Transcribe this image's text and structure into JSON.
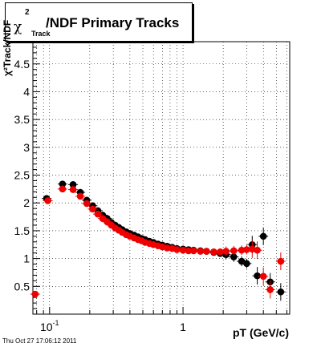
{
  "title": {
    "chi_symbol": "χ",
    "superscript": "2",
    "subscript": "Track",
    "main": "/NDF  Primary Tracks"
  },
  "ylabel": "χ²Track/NDF",
  "xlabel": "pT (GeV/c)",
  "timestamp": "Thu Oct 27 17:06:12 2011",
  "colors": {
    "series_black": "#000000",
    "series_red": "#ee0000",
    "grid": "#000000"
  },
  "chart_data": {
    "type": "scatter",
    "xscale": "log",
    "xlim": [
      0.075,
      6.3
    ],
    "ylim": [
      0,
      4.9
    ],
    "grid": true,
    "yticks": [
      0.5,
      1,
      1.5,
      2,
      2.5,
      3,
      3.5,
      4,
      4.5
    ],
    "ytick_labels": [
      "0.5",
      "1",
      "1.5",
      "2",
      "2.5",
      "3",
      "3.5",
      "4",
      "4.5"
    ],
    "xticks": [
      0.1,
      1
    ],
    "xtick_labels": [
      "10⁻¹",
      "1"
    ],
    "series": [
      {
        "color": "black",
        "points": [
          [
            0.095,
            2.08
          ],
          [
            0.125,
            2.34
          ],
          [
            0.15,
            2.33
          ],
          [
            0.17,
            2.19
          ],
          [
            0.19,
            2.05
          ],
          [
            0.21,
            1.95
          ],
          [
            0.23,
            1.86
          ],
          [
            0.25,
            1.78
          ],
          [
            0.27,
            1.72
          ],
          [
            0.29,
            1.65
          ],
          [
            0.31,
            1.6
          ],
          [
            0.33,
            1.56
          ],
          [
            0.35,
            1.52
          ],
          [
            0.375,
            1.48
          ],
          [
            0.4,
            1.45
          ],
          [
            0.43,
            1.42
          ],
          [
            0.46,
            1.39
          ],
          [
            0.49,
            1.36
          ],
          [
            0.52,
            1.34
          ],
          [
            0.56,
            1.31
          ],
          [
            0.6,
            1.29
          ],
          [
            0.65,
            1.26
          ],
          [
            0.7,
            1.24
          ],
          [
            0.76,
            1.22
          ],
          [
            0.83,
            1.2
          ],
          [
            0.9,
            1.18
          ],
          [
            1.0,
            1.17
          ],
          [
            1.1,
            1.16
          ],
          [
            1.2,
            1.15
          ],
          [
            1.35,
            1.14
          ],
          [
            1.5,
            1.13
          ],
          [
            1.7,
            1.11
          ],
          [
            1.9,
            1.09
          ],
          [
            2.1,
            1.07
          ],
          [
            2.4,
            1.03
          ],
          [
            2.75,
            0.95
          ],
          [
            3.0,
            0.91
          ],
          [
            3.3,
            1.25
          ],
          [
            3.6,
            0.69
          ],
          [
            4.0,
            1.4
          ],
          [
            4.5,
            0.58
          ],
          [
            5.4,
            0.4
          ]
        ]
      },
      {
        "color": "red",
        "points": [
          [
            0.078,
            0.36
          ],
          [
            0.097,
            2.04
          ],
          [
            0.125,
            2.25
          ],
          [
            0.15,
            2.24
          ],
          [
            0.17,
            2.12
          ],
          [
            0.19,
            1.99
          ],
          [
            0.21,
            1.89
          ],
          [
            0.23,
            1.8
          ],
          [
            0.25,
            1.72
          ],
          [
            0.27,
            1.66
          ],
          [
            0.29,
            1.6
          ],
          [
            0.31,
            1.55
          ],
          [
            0.33,
            1.51
          ],
          [
            0.35,
            1.47
          ],
          [
            0.375,
            1.43
          ],
          [
            0.4,
            1.4
          ],
          [
            0.43,
            1.37
          ],
          [
            0.46,
            1.34
          ],
          [
            0.49,
            1.32
          ],
          [
            0.52,
            1.29
          ],
          [
            0.56,
            1.27
          ],
          [
            0.6,
            1.25
          ],
          [
            0.65,
            1.23
          ],
          [
            0.7,
            1.21
          ],
          [
            0.76,
            1.19
          ],
          [
            0.83,
            1.18
          ],
          [
            0.9,
            1.16
          ],
          [
            1.0,
            1.15
          ],
          [
            1.1,
            1.14
          ],
          [
            1.2,
            1.14
          ],
          [
            1.35,
            1.13
          ],
          [
            1.5,
            1.13
          ],
          [
            1.7,
            1.12
          ],
          [
            1.9,
            1.12
          ],
          [
            2.1,
            1.13
          ],
          [
            2.4,
            1.14
          ],
          [
            2.75,
            1.15
          ],
          [
            3.0,
            1.16
          ],
          [
            3.3,
            1.17
          ],
          [
            3.6,
            1.15
          ],
          [
            4.0,
            0.68
          ],
          [
            4.5,
            0.44
          ],
          [
            5.4,
            0.95
          ]
        ]
      }
    ]
  }
}
